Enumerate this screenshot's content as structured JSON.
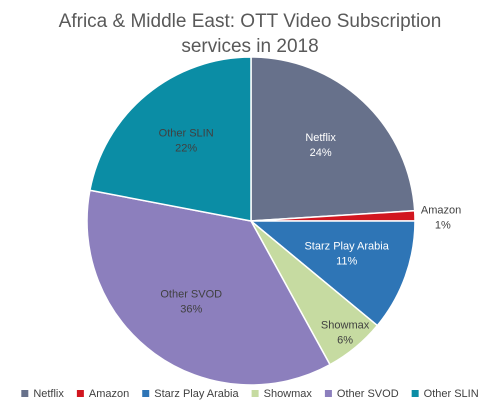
{
  "chart_data": {
    "type": "pie",
    "title": "Africa & Middle East: OTT Video Subscription services in 2018",
    "title_lines": [
      "Africa & Middle East: OTT Video Subscription",
      "services in 2018"
    ],
    "series": [
      {
        "name": "Netflix",
        "value": 24,
        "label": "24%",
        "color": "#67718b"
      },
      {
        "name": "Amazon",
        "value": 1,
        "label": "1%",
        "color": "#d1161f"
      },
      {
        "name": "Starz Play Arabia",
        "value": 11,
        "label": "11%",
        "color": "#2e75b6"
      },
      {
        "name": "Showmax",
        "value": 6,
        "label": "6%",
        "color": "#c6dba1"
      },
      {
        "name": "Other SVOD",
        "value": 36,
        "label": "36%",
        "color": "#8c7fbd"
      },
      {
        "name": "Other SLIN",
        "value": 22,
        "label": "22%",
        "color": "#0b8da5"
      }
    ],
    "legend_position": "bottom",
    "start_angle": "12 o'clock, clockwise"
  }
}
